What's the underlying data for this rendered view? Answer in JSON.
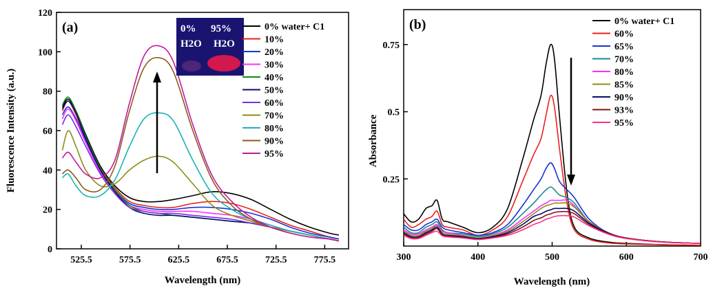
{
  "chart_data": [
    {
      "type": "line",
      "panel_label": "(a)",
      "xlabel": "Wavelength (nm)",
      "ylabel": "Fluorescence Intensity (a.u.)",
      "xlim": [
        500,
        800
      ],
      "ylim": [
        0,
        120
      ],
      "xticks": [
        "525.5",
        "575.5",
        "625.5",
        "675.5",
        "725.5",
        "775.5"
      ],
      "yticks": [
        "0",
        "20",
        "40",
        "60",
        "80",
        "100",
        "120"
      ],
      "legend_position": "right",
      "grid": false,
      "inset": {
        "left": "0%",
        "left_sub": "H2O",
        "right": "95%",
        "right_sub": "H2O"
      },
      "series": [
        {
          "name": "0% water+ C1",
          "color": "#000000",
          "x": [
            506,
            512,
            520,
            530,
            545,
            560,
            575,
            590,
            605,
            620,
            640,
            660,
            680,
            700,
            720,
            740,
            760,
            780,
            790
          ],
          "y": [
            72,
            76,
            70,
            58,
            42,
            32,
            26,
            24,
            24,
            25,
            27,
            29,
            28,
            25,
            20,
            15,
            11,
            8,
            7
          ]
        },
        {
          "name": "10%",
          "color": "#e8201a",
          "x": [
            506,
            512,
            520,
            530,
            545,
            560,
            575,
            590,
            605,
            620,
            640,
            660,
            680,
            700,
            720,
            740,
            760,
            780,
            790
          ],
          "y": [
            70,
            75,
            68,
            56,
            41,
            31,
            24,
            22,
            21,
            21,
            23,
            24,
            23,
            20,
            16,
            12,
            9,
            6,
            5
          ]
        },
        {
          "name": "20%",
          "color": "#1733d6",
          "x": [
            506,
            512,
            520,
            530,
            545,
            560,
            575,
            590,
            605,
            620,
            640,
            660,
            680,
            700,
            720,
            740,
            760,
            780,
            790
          ],
          "y": [
            68,
            72,
            66,
            55,
            40,
            30,
            23,
            21,
            20,
            20,
            21,
            21,
            20,
            18,
            15,
            11,
            8,
            6,
            5
          ]
        },
        {
          "name": "30%",
          "color": "#ff2bff",
          "x": [
            506,
            512,
            520,
            530,
            545,
            560,
            575,
            590,
            605,
            620,
            640,
            660,
            680,
            700,
            720,
            740,
            760,
            780,
            790
          ],
          "y": [
            66,
            71,
            65,
            54,
            39,
            29,
            22,
            20,
            19,
            19,
            19,
            18,
            17,
            15,
            12,
            9,
            7,
            5,
            4
          ]
        },
        {
          "name": "40%",
          "color": "#128a12",
          "x": [
            506,
            512,
            520,
            530,
            545,
            560,
            575,
            590,
            605,
            620,
            640,
            660,
            680,
            700,
            720,
            740,
            760,
            780,
            790
          ],
          "y": [
            73,
            77,
            70,
            57,
            41,
            30,
            22,
            19,
            18,
            17,
            16,
            15,
            14,
            13,
            11,
            9,
            7,
            5,
            4
          ]
        },
        {
          "name": "50%",
          "color": "#0a0a6e",
          "x": [
            506,
            512,
            520,
            530,
            545,
            560,
            575,
            590,
            605,
            620,
            640,
            660,
            680,
            700,
            720,
            740,
            760,
            780,
            790
          ],
          "y": [
            71,
            75,
            69,
            56,
            40,
            29,
            21,
            18,
            17,
            17,
            16,
            15,
            14,
            13,
            11,
            9,
            7,
            5,
            4
          ]
        },
        {
          "name": "60%",
          "color": "#7a2be0",
          "x": [
            506,
            512,
            520,
            530,
            545,
            560,
            575,
            590,
            605,
            620,
            640,
            660,
            680,
            700,
            720,
            740,
            760,
            780,
            790
          ],
          "y": [
            63,
            68,
            62,
            52,
            38,
            28,
            21,
            19,
            18,
            18,
            17,
            16,
            15,
            13,
            11,
            9,
            7,
            5,
            4
          ]
        },
        {
          "name": "70%",
          "color": "#8c8c14",
          "x": [
            506,
            512,
            520,
            530,
            545,
            560,
            575,
            590,
            605,
            620,
            640,
            660,
            680,
            700,
            720,
            740,
            760,
            780,
            790
          ],
          "y": [
            50,
            60,
            52,
            40,
            32,
            33,
            40,
            45,
            47,
            44,
            33,
            22,
            17,
            14,
            11,
            9,
            7,
            5,
            4
          ]
        },
        {
          "name": "80%",
          "color": "#1ab3b3",
          "x": [
            506,
            512,
            520,
            530,
            545,
            560,
            575,
            590,
            605,
            620,
            640,
            660,
            680,
            700,
            720,
            740,
            760,
            780,
            790
          ],
          "y": [
            36,
            38,
            32,
            27,
            27,
            35,
            52,
            66,
            69,
            65,
            45,
            28,
            20,
            15,
            12,
            9,
            7,
            5,
            4
          ]
        },
        {
          "name": "90%",
          "color": "#8a5a1e",
          "x": [
            506,
            512,
            520,
            530,
            545,
            560,
            575,
            590,
            605,
            620,
            640,
            660,
            680,
            700,
            720,
            740,
            760,
            780,
            790
          ],
          "y": [
            38,
            40,
            36,
            30,
            30,
            42,
            70,
            92,
            97,
            90,
            60,
            35,
            22,
            15,
            11,
            8,
            6,
            5,
            4
          ]
        },
        {
          "name": "95%",
          "color": "#c2189a",
          "x": [
            506,
            512,
            520,
            530,
            545,
            560,
            575,
            590,
            605,
            620,
            640,
            660,
            680,
            700,
            720,
            740,
            760,
            780,
            790
          ],
          "y": [
            46,
            49,
            44,
            38,
            36,
            45,
            74,
            98,
            103,
            95,
            63,
            37,
            24,
            16,
            11,
            8,
            6,
            5,
            4
          ]
        }
      ]
    },
    {
      "type": "line",
      "panel_label": "(b)",
      "xlabel": "Wavelength (nm)",
      "ylabel": "Absorbance",
      "xlim": [
        300,
        700
      ],
      "ylim": [
        0,
        0.88
      ],
      "xticks": [
        "300",
        "400",
        "500",
        "600",
        "700"
      ],
      "yticks": [
        "0.25",
        "0.5",
        "0.75"
      ],
      "legend_position": "top-right",
      "grid": false,
      "series": [
        {
          "name": "0% water+ C1",
          "color": "#000000",
          "x": [
            300,
            310,
            320,
            330,
            338,
            345,
            352,
            360,
            380,
            400,
            420,
            440,
            460,
            475,
            485,
            492,
            498,
            503,
            510,
            520,
            530,
            550,
            575,
            600,
            650,
            700
          ],
          "y": [
            0.12,
            0.09,
            0.1,
            0.14,
            0.15,
            0.17,
            0.1,
            0.09,
            0.07,
            0.05,
            0.07,
            0.14,
            0.32,
            0.47,
            0.56,
            0.68,
            0.75,
            0.7,
            0.48,
            0.2,
            0.07,
            0.03,
            0.015,
            0.01,
            0.005,
            0.003
          ]
        },
        {
          "name": "60%",
          "color": "#e8201a",
          "x": [
            300,
            310,
            320,
            330,
            338,
            345,
            352,
            360,
            380,
            400,
            420,
            440,
            460,
            475,
            485,
            492,
            498,
            503,
            510,
            520,
            530,
            550,
            575,
            600,
            650,
            700
          ],
          "y": [
            0.1,
            0.07,
            0.08,
            0.1,
            0.11,
            0.13,
            0.08,
            0.07,
            0.06,
            0.04,
            0.06,
            0.11,
            0.24,
            0.34,
            0.4,
            0.49,
            0.56,
            0.52,
            0.36,
            0.16,
            0.06,
            0.025,
            0.012,
            0.008,
            0.005,
            0.003
          ]
        },
        {
          "name": "65%",
          "color": "#1733d6",
          "x": [
            300,
            310,
            320,
            330,
            338,
            345,
            352,
            360,
            380,
            400,
            420,
            440,
            460,
            475,
            485,
            492,
            498,
            503,
            510,
            520,
            530,
            550,
            575,
            600,
            650,
            700
          ],
          "y": [
            0.08,
            0.06,
            0.06,
            0.08,
            0.09,
            0.1,
            0.07,
            0.06,
            0.05,
            0.04,
            0.05,
            0.08,
            0.15,
            0.21,
            0.25,
            0.29,
            0.31,
            0.29,
            0.24,
            0.21,
            0.18,
            0.1,
            0.05,
            0.03,
            0.015,
            0.01
          ]
        },
        {
          "name": "70%",
          "color": "#1a8a8a",
          "x": [
            300,
            310,
            320,
            330,
            338,
            345,
            352,
            360,
            380,
            400,
            420,
            440,
            460,
            475,
            485,
            492,
            498,
            503,
            510,
            520,
            530,
            550,
            575,
            600,
            650,
            700
          ],
          "y": [
            0.07,
            0.05,
            0.05,
            0.07,
            0.08,
            0.09,
            0.06,
            0.05,
            0.045,
            0.035,
            0.045,
            0.07,
            0.12,
            0.16,
            0.19,
            0.21,
            0.22,
            0.21,
            0.19,
            0.18,
            0.16,
            0.09,
            0.05,
            0.03,
            0.015,
            0.01
          ]
        },
        {
          "name": "80%",
          "color": "#ff2bff",
          "x": [
            300,
            310,
            320,
            330,
            338,
            345,
            352,
            360,
            380,
            400,
            420,
            440,
            460,
            475,
            485,
            492,
            498,
            503,
            510,
            520,
            530,
            550,
            575,
            600,
            650,
            700
          ],
          "y": [
            0.06,
            0.045,
            0.045,
            0.06,
            0.07,
            0.08,
            0.055,
            0.05,
            0.04,
            0.03,
            0.04,
            0.06,
            0.1,
            0.13,
            0.15,
            0.16,
            0.17,
            0.17,
            0.17,
            0.17,
            0.15,
            0.09,
            0.05,
            0.03,
            0.015,
            0.01
          ]
        },
        {
          "name": "85%",
          "color": "#8c8c14",
          "x": [
            300,
            310,
            320,
            330,
            338,
            345,
            352,
            360,
            380,
            400,
            420,
            440,
            460,
            475,
            485,
            492,
            498,
            503,
            510,
            520,
            530,
            550,
            575,
            600,
            650,
            700
          ],
          "y": [
            0.055,
            0.04,
            0.04,
            0.055,
            0.065,
            0.075,
            0.05,
            0.045,
            0.038,
            0.03,
            0.038,
            0.055,
            0.09,
            0.12,
            0.14,
            0.15,
            0.155,
            0.16,
            0.16,
            0.16,
            0.145,
            0.09,
            0.05,
            0.03,
            0.015,
            0.01
          ]
        },
        {
          "name": "90%",
          "color": "#0a0a6e",
          "x": [
            300,
            310,
            320,
            330,
            338,
            345,
            352,
            360,
            380,
            400,
            420,
            440,
            460,
            475,
            485,
            492,
            498,
            503,
            510,
            520,
            530,
            550,
            575,
            600,
            650,
            700
          ],
          "y": [
            0.05,
            0.035,
            0.035,
            0.05,
            0.06,
            0.07,
            0.045,
            0.04,
            0.035,
            0.028,
            0.035,
            0.05,
            0.08,
            0.11,
            0.12,
            0.13,
            0.135,
            0.14,
            0.14,
            0.14,
            0.13,
            0.085,
            0.05,
            0.03,
            0.015,
            0.01
          ]
        },
        {
          "name": "93%",
          "color": "#7a1414",
          "x": [
            300,
            310,
            320,
            330,
            338,
            345,
            352,
            360,
            380,
            400,
            420,
            440,
            460,
            475,
            485,
            492,
            498,
            503,
            510,
            520,
            530,
            550,
            575,
            600,
            650,
            700
          ],
          "y": [
            0.045,
            0.032,
            0.032,
            0.045,
            0.055,
            0.065,
            0.042,
            0.037,
            0.032,
            0.026,
            0.032,
            0.045,
            0.07,
            0.095,
            0.105,
            0.115,
            0.12,
            0.125,
            0.128,
            0.128,
            0.12,
            0.08,
            0.048,
            0.03,
            0.015,
            0.01
          ]
        },
        {
          "name": "95%",
          "color": "#ff2b8a",
          "x": [
            300,
            310,
            320,
            330,
            338,
            345,
            352,
            360,
            380,
            400,
            420,
            440,
            460,
            475,
            485,
            492,
            498,
            503,
            510,
            520,
            530,
            550,
            575,
            600,
            650,
            700
          ],
          "y": [
            0.04,
            0.028,
            0.028,
            0.04,
            0.05,
            0.055,
            0.038,
            0.034,
            0.03,
            0.024,
            0.03,
            0.04,
            0.06,
            0.08,
            0.09,
            0.1,
            0.105,
            0.11,
            0.113,
            0.113,
            0.108,
            0.075,
            0.045,
            0.028,
            0.014,
            0.01
          ]
        }
      ]
    }
  ]
}
